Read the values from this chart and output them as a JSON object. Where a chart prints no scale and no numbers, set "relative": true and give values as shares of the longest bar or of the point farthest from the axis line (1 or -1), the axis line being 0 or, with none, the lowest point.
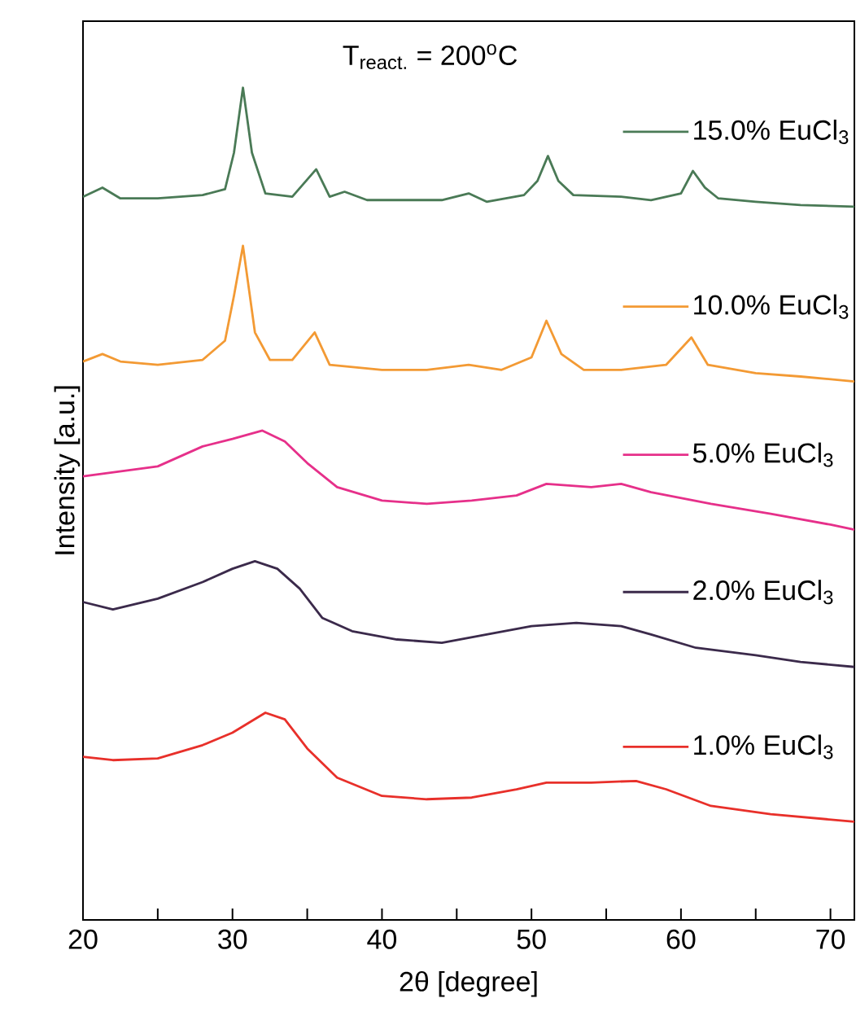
{
  "chart_data": {
    "type": "line",
    "relative": true,
    "xlabel": "2θ [degree]",
    "ylabel": "Intensity [a.u.]",
    "annotations": [
      "T$_{react.}$ = 200$^{o}$C"
    ],
    "legend": "right",
    "xlim": [
      20,
      71.6
    ],
    "xticks": [
      20,
      {
        "value": 25,
        "label": null
      },
      30,
      {
        "value": 35,
        "label": null
      },
      40,
      {
        "value": 45,
        "label": null
      },
      50,
      {
        "value": 55,
        "label": null
      },
      60,
      {
        "value": 65,
        "label": null
      },
      70
    ],
    "series": [
      {
        "name": "15.0% EuCl$_{3}$",
        "color": "#4a7a56",
        "x": [
          20,
          21.3,
          22.5,
          25,
          28,
          29.5,
          30.1,
          30.7,
          31.3,
          32.2,
          34,
          35.6,
          36.5,
          37.5,
          39,
          42,
          44,
          45.8,
          47,
          49.5,
          50.4,
          51.1,
          51.8,
          52.8,
          56,
          58,
          60,
          60.8,
          61.6,
          62.5,
          65,
          68,
          71.6
        ],
        "values": [
          0.869,
          0.88,
          0.867,
          0.867,
          0.871,
          0.878,
          0.922,
          1.0,
          0.922,
          0.873,
          0.869,
          0.902,
          0.869,
          0.875,
          0.865,
          0.865,
          0.865,
          0.873,
          0.863,
          0.871,
          0.888,
          0.918,
          0.888,
          0.871,
          0.869,
          0.865,
          0.873,
          0.9,
          0.88,
          0.867,
          0.863,
          0.859,
          0.857
        ]
      },
      {
        "name": "10.0% EuCl$_{3}$",
        "color": "#f39a34",
        "x": [
          20,
          21.3,
          22.5,
          25,
          28,
          29.5,
          30.1,
          30.7,
          31.5,
          32.5,
          34,
          35.5,
          36.5,
          40,
          43,
          45.8,
          48,
          50,
          51,
          52,
          53.5,
          56,
          59,
          60.7,
          61.8,
          65,
          68,
          71.6
        ],
        "values": [
          0.671,
          0.68,
          0.671,
          0.667,
          0.673,
          0.696,
          0.75,
          0.81,
          0.706,
          0.673,
          0.673,
          0.706,
          0.667,
          0.661,
          0.661,
          0.667,
          0.661,
          0.676,
          0.72,
          0.68,
          0.661,
          0.661,
          0.667,
          0.7,
          0.667,
          0.657,
          0.653,
          0.647
        ]
      },
      {
        "name": "5.0% EuCl$_{3}$",
        "color": "#e6308a",
        "x": [
          20,
          25,
          28,
          30,
          32,
          33.5,
          35,
          37,
          40,
          43,
          46,
          49,
          51,
          54,
          56,
          58,
          62,
          66,
          70,
          71.6
        ],
        "values": [
          0.533,
          0.545,
          0.569,
          0.578,
          0.588,
          0.575,
          0.549,
          0.52,
          0.504,
          0.5,
          0.504,
          0.51,
          0.524,
          0.52,
          0.524,
          0.514,
          0.5,
          0.488,
          0.475,
          0.469
        ]
      },
      {
        "name": "2.0% EuCl$_{3}$",
        "color": "#3b2a4b",
        "x": [
          20,
          22,
          25,
          28,
          30,
          31.5,
          33,
          34.5,
          36,
          38,
          41,
          44,
          47,
          50,
          53,
          56,
          58,
          61,
          65,
          68,
          71.6
        ],
        "values": [
          0.382,
          0.373,
          0.386,
          0.406,
          0.422,
          0.431,
          0.422,
          0.398,
          0.363,
          0.347,
          0.337,
          0.333,
          0.343,
          0.353,
          0.357,
          0.353,
          0.343,
          0.327,
          0.318,
          0.31,
          0.304
        ]
      },
      {
        "name": "1.0% EuCl$_{3}$",
        "color": "#e8302a",
        "x": [
          20,
          22,
          25,
          28,
          30,
          32.2,
          33.5,
          35,
          37,
          40,
          43,
          46,
          49,
          51,
          54,
          57,
          59,
          62,
          66,
          71.6
        ],
        "values": [
          0.196,
          0.192,
          0.194,
          0.21,
          0.225,
          0.249,
          0.241,
          0.206,
          0.171,
          0.149,
          0.145,
          0.147,
          0.157,
          0.165,
          0.165,
          0.167,
          0.157,
          0.137,
          0.127,
          0.118
        ]
      }
    ]
  }
}
